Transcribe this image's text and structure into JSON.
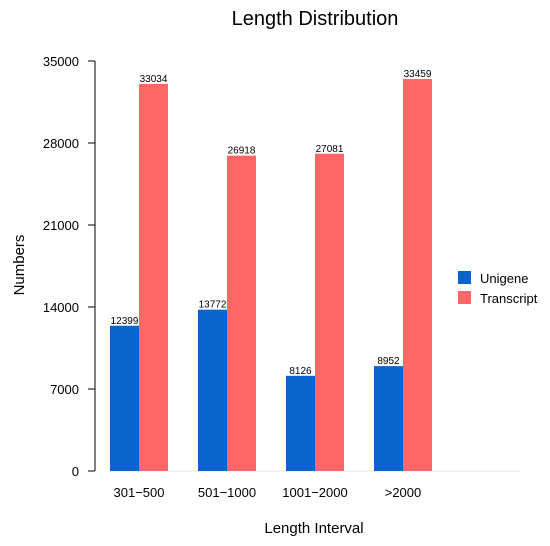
{
  "chart_data": {
    "type": "bar",
    "title": "Length Distribution",
    "xlabel": "Length Interval",
    "ylabel": "Numbers",
    "categories": [
      "301−500",
      "501−1000",
      "1001−2000",
      ">2000"
    ],
    "series": [
      {
        "name": "Unigene",
        "color": "#0863CC",
        "values": [
          12399,
          13772,
          8126,
          8952
        ],
        "labels": [
          "12399",
          "13772",
          "8126",
          "8952"
        ]
      },
      {
        "name": "Transcript",
        "color": "#FF6666",
        "values": [
          33034,
          26918,
          27081,
          33459
        ],
        "labels": [
          "33034",
          "26918",
          "27081",
          "33459"
        ]
      }
    ],
    "ylim": [
      0,
      35000
    ],
    "yticks": [
      0,
      7000,
      14000,
      21000,
      28000,
      35000
    ],
    "ytick_labels": [
      "0",
      "7000",
      "14000",
      "21000",
      "28000",
      "35000"
    ],
    "grid": false,
    "legend_position": "right"
  }
}
